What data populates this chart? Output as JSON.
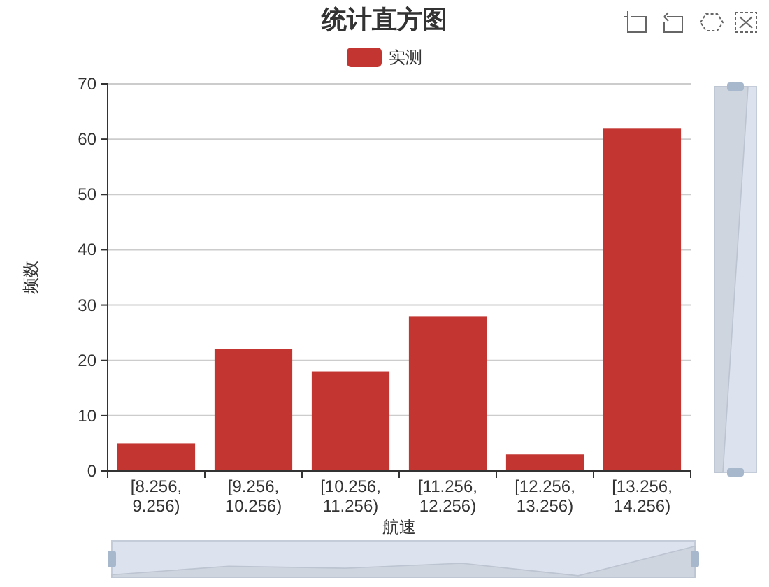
{
  "chart_data": {
    "type": "bar",
    "title": "统计直方图",
    "xlabel": "航速",
    "ylabel": "频数",
    "categories": [
      "[8.256, 9.256)",
      "[9.256, 10.256)",
      "[10.256, 11.256)",
      "[11.256, 12.256)",
      "[12.256, 13.256)",
      "[13.256, 14.256)"
    ],
    "series": [
      {
        "name": "实测",
        "color": "#c23531",
        "values": [
          5,
          22,
          18,
          28,
          3,
          62
        ]
      }
    ],
    "ylim": [
      0,
      70
    ],
    "yticks": [
      0,
      10,
      20,
      30,
      40,
      50,
      60,
      70
    ],
    "grid": "y",
    "legend": "top"
  }
}
